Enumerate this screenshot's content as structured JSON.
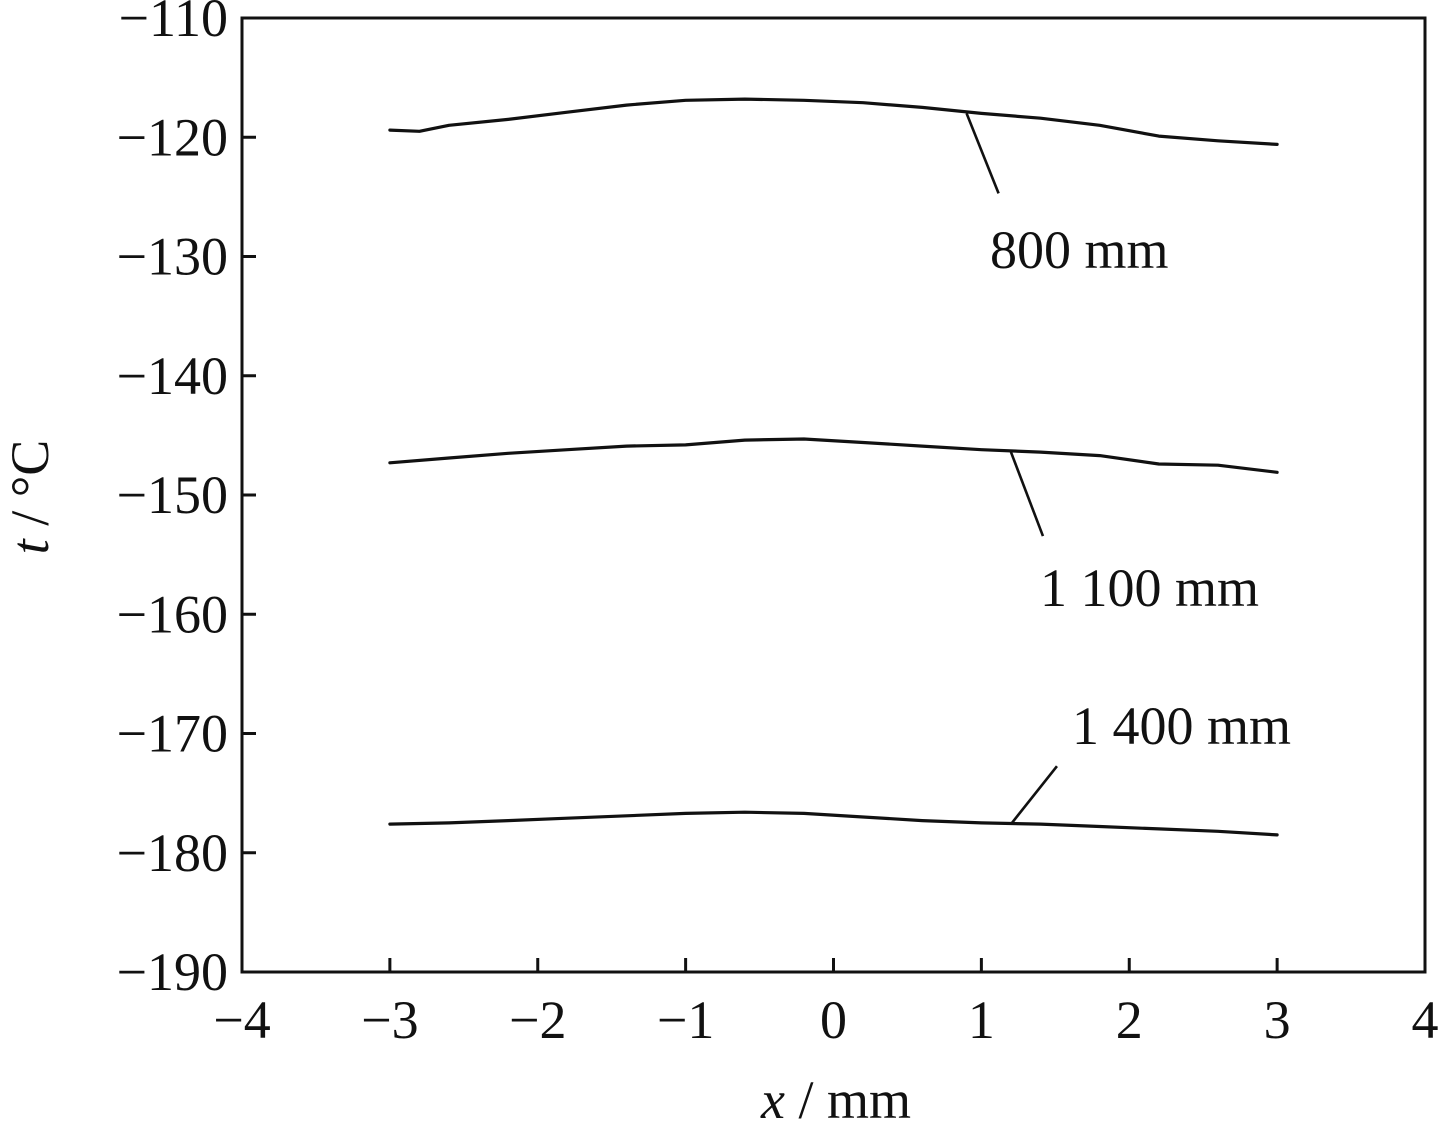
{
  "chart_data": {
    "type": "line",
    "xlabel": "x / mm",
    "ylabel": "t / °C",
    "xlim": [
      -4,
      4
    ],
    "ylim": [
      -190,
      -110
    ],
    "x_ticks": [
      -4,
      -3,
      -2,
      -1,
      0,
      1,
      2,
      3,
      4
    ],
    "y_ticks": [
      -190,
      -180,
      -170,
      -160,
      -150,
      -140,
      -130,
      -120,
      -110
    ],
    "x_tick_labels": [
      "−4",
      "−3",
      "−2",
      "−1",
      "0",
      "1",
      "2",
      "3",
      "4"
    ],
    "y_tick_labels": [
      "−190",
      "−180",
      "−170",
      "−160",
      "−150",
      "−140",
      "−130",
      "−120",
      "−110"
    ],
    "grid": false,
    "colors": {
      "line": "#111111",
      "frame": "#111111",
      "background": "#ffffff"
    },
    "series": [
      {
        "name": "800 mm",
        "x": [
          -3.0,
          -2.8,
          -2.6,
          -2.2,
          -1.8,
          -1.4,
          -1.0,
          -0.6,
          -0.2,
          0.2,
          0.6,
          1.0,
          1.4,
          1.8,
          2.2,
          2.6,
          3.0
        ],
        "y": [
          -119.4,
          -119.5,
          -119.0,
          -118.5,
          -117.9,
          -117.3,
          -116.9,
          -116.8,
          -116.9,
          -117.1,
          -117.5,
          -118.0,
          -118.4,
          -119.0,
          -119.9,
          -120.3,
          -120.6
        ],
        "label_anchor": [
          0.9,
          -118.0
        ]
      },
      {
        "name": "1 100 mm",
        "x": [
          -3.0,
          -2.6,
          -2.2,
          -1.8,
          -1.4,
          -1.0,
          -0.6,
          -0.2,
          0.2,
          0.6,
          1.0,
          1.4,
          1.8,
          2.2,
          2.6,
          3.0
        ],
        "y": [
          -147.3,
          -146.9,
          -146.5,
          -146.2,
          -145.9,
          -145.8,
          -145.4,
          -145.3,
          -145.6,
          -145.9,
          -146.2,
          -146.4,
          -146.7,
          -147.4,
          -147.5,
          -148.1
        ],
        "label_anchor": [
          1.2,
          -146.4
        ]
      },
      {
        "name": "1 400 mm",
        "x": [
          -3.0,
          -2.6,
          -2.2,
          -1.8,
          -1.4,
          -1.0,
          -0.6,
          -0.2,
          0.2,
          0.6,
          1.0,
          1.4,
          1.8,
          2.2,
          2.6,
          3.0
        ],
        "y": [
          -177.6,
          -177.5,
          -177.3,
          -177.1,
          -176.9,
          -176.7,
          -176.6,
          -176.7,
          -177.0,
          -177.3,
          -177.5,
          -177.6,
          -177.8,
          -178.0,
          -178.2,
          -178.5
        ],
        "label_anchor": [
          1.2,
          -177.6
        ]
      }
    ]
  }
}
